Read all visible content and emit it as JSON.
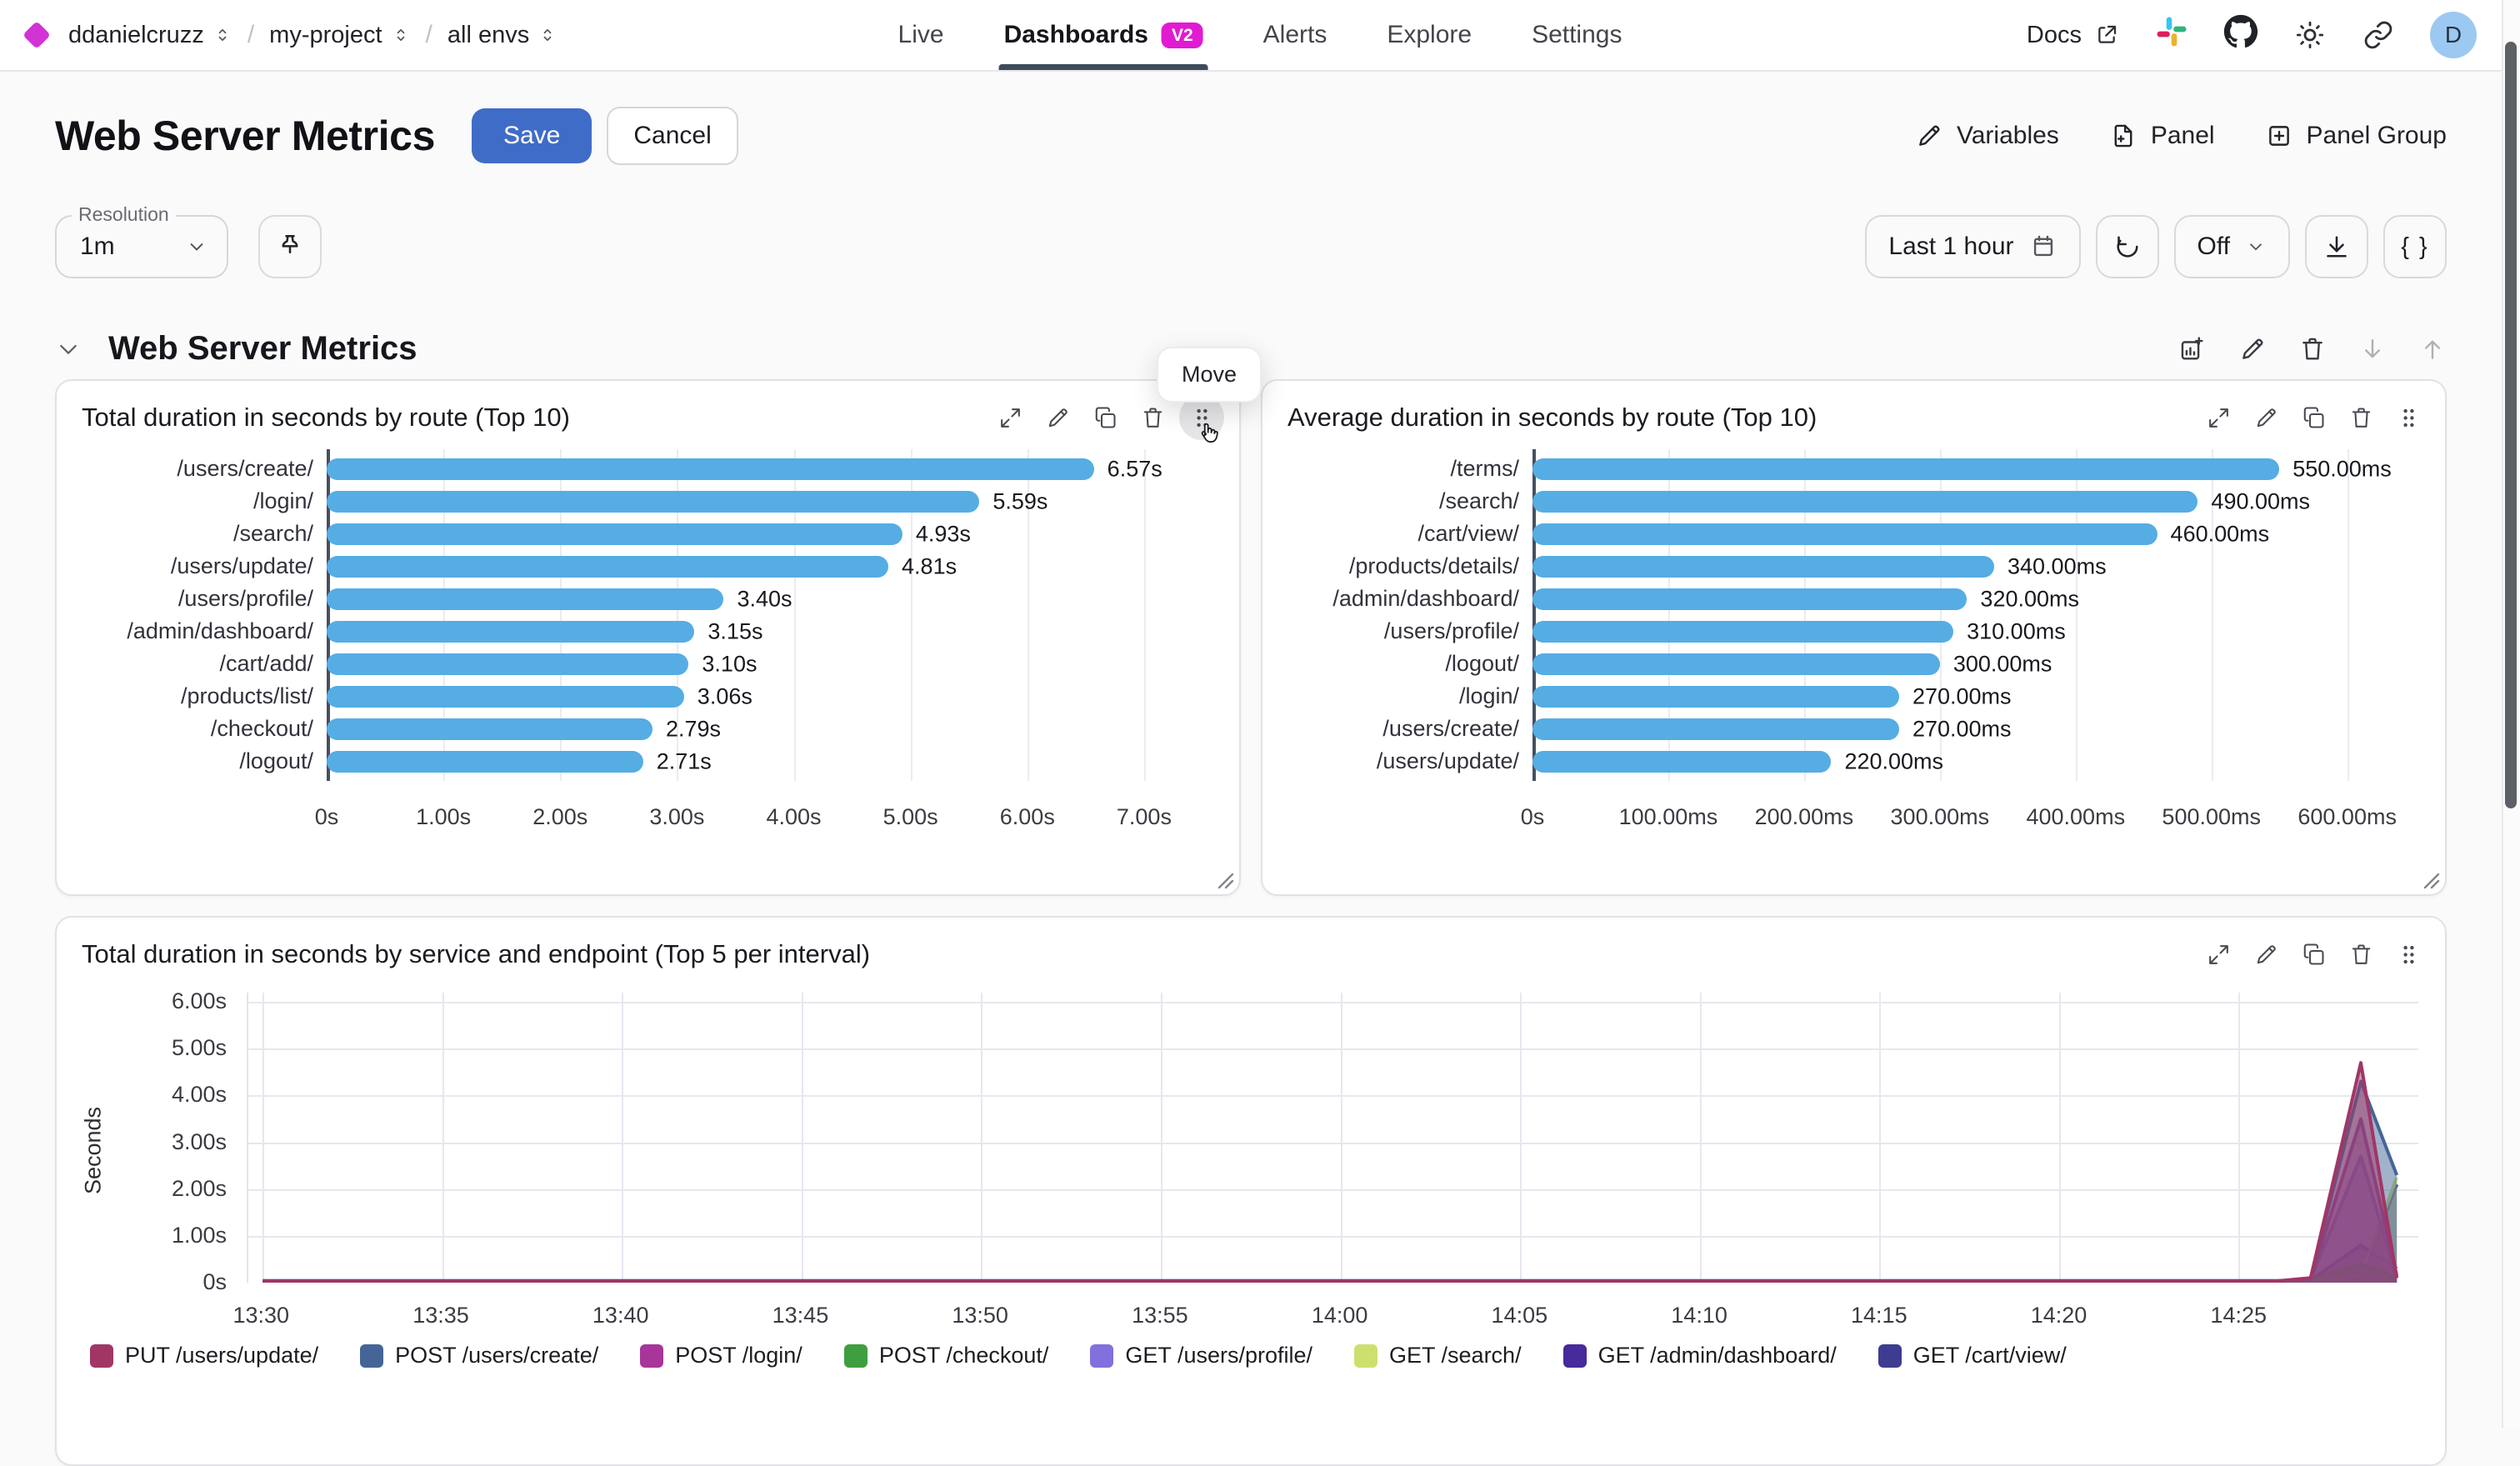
{
  "nav": {
    "separator": "/",
    "breadcrumb": [
      {
        "label": "ddanielcruzz"
      },
      {
        "label": "my-project"
      },
      {
        "label": "all envs"
      }
    ],
    "tabs": [
      {
        "label": "Live",
        "active": false
      },
      {
        "label": "Dashboards",
        "active": true,
        "badge": "V2"
      },
      {
        "label": "Alerts",
        "active": false
      },
      {
        "label": "Explore",
        "active": false
      },
      {
        "label": "Settings",
        "active": false
      }
    ],
    "docs_label": "Docs",
    "icon_names": [
      "external-link-icon",
      "slack-icon",
      "github-icon",
      "sun-icon",
      "link-icon"
    ],
    "avatar_initial": "D"
  },
  "header": {
    "title": "Web Server Metrics",
    "save_label": "Save",
    "cancel_label": "Cancel",
    "actions": [
      {
        "label": "Variables",
        "icon": "pencil-icon"
      },
      {
        "label": "Panel",
        "icon": "file-plus-icon"
      },
      {
        "label": "Panel Group",
        "icon": "square-plus-icon"
      }
    ]
  },
  "toolbar": {
    "resolution_label": "Resolution",
    "resolution_value": "1m",
    "pin_icon": "pin-icon",
    "time_range": "Last 1 hour",
    "refresh_value": "Off",
    "code_button_label": "{ }",
    "icon_names": [
      "calendar-icon",
      "refresh-icon",
      "chevron-down-icon",
      "download-icon"
    ]
  },
  "section": {
    "title": "Web Server Metrics",
    "move_tooltip": "Move",
    "toolbar_icons": [
      "chart-add-icon",
      "pencil-icon",
      "trash-icon",
      "arrow-down-icon",
      "arrow-up-icon"
    ]
  },
  "panel_toolbar_icons": [
    "expand-icon",
    "pencil-icon",
    "copy-icon",
    "trash-icon",
    "drag-handle-icon"
  ],
  "colors": {
    "save_button": "#3f6cc7",
    "badge": "#e01bd2",
    "active_tab_underline": "#3e4b5b",
    "bar": "#55ade4",
    "avatar_bg": "#9cc9f2",
    "brand_diamond": "#d133d5"
  },
  "chart_data": [
    {
      "type": "bar",
      "orientation": "horizontal",
      "title": "Total duration in seconds by route (Top 10)",
      "categories": [
        "/users/create/",
        "/login/",
        "/search/",
        "/users/update/",
        "/users/profile/",
        "/admin/dashboard/",
        "/cart/add/",
        "/products/list/",
        "/checkout/",
        "/logout/"
      ],
      "values": [
        6.57,
        5.59,
        4.93,
        4.81,
        3.4,
        3.15,
        3.1,
        3.06,
        2.79,
        2.71
      ],
      "value_labels": [
        "6.57s",
        "5.59s",
        "4.93s",
        "4.81s",
        "3.40s",
        "3.15s",
        "3.10s",
        "3.06s",
        "2.79s",
        "2.71s"
      ],
      "unit": "s",
      "xticks": [
        0,
        1,
        2,
        3,
        4,
        5,
        6,
        7
      ],
      "xtick_labels": [
        "0s",
        "1.00s",
        "2.00s",
        "3.00s",
        "4.00s",
        "5.00s",
        "6.00s",
        "7.00s"
      ],
      "xmax": 7.5,
      "bar_color": "#55ade4"
    },
    {
      "type": "bar",
      "orientation": "horizontal",
      "title": "Average duration in seconds by route (Top 10)",
      "categories": [
        "/terms/",
        "/search/",
        "/cart/view/",
        "/products/details/",
        "/admin/dashboard/",
        "/users/profile/",
        "/logout/",
        "/login/",
        "/users/create/",
        "/users/update/"
      ],
      "values": [
        550,
        490,
        460,
        340,
        320,
        310,
        300,
        270,
        270,
        220
      ],
      "value_labels": [
        "550.00ms",
        "490.00ms",
        "460.00ms",
        "340.00ms",
        "320.00ms",
        "310.00ms",
        "300.00ms",
        "270.00ms",
        "270.00ms",
        "220.00ms"
      ],
      "unit": "ms",
      "xticks": [
        0,
        100,
        200,
        300,
        400,
        500,
        600
      ],
      "xtick_labels": [
        "0s",
        "100.00ms",
        "200.00ms",
        "300.00ms",
        "400.00ms",
        "500.00ms",
        "600.00ms"
      ],
      "xmax": 645,
      "bar_color": "#55ade4"
    },
    {
      "type": "area",
      "title": "Total duration in seconds by service and endpoint (Top 5 per interval)",
      "ylabel": "Seconds",
      "yticks": [
        0,
        1,
        2,
        3,
        4,
        5,
        6
      ],
      "ytick_labels": [
        "0s",
        "1.00s",
        "2.00s",
        "3.00s",
        "4.00s",
        "5.00s",
        "6.00s"
      ],
      "ymax": 6.2,
      "x_domain_minutes": [
        -0.4,
        60
      ],
      "xtick_minutes": [
        0,
        5,
        10,
        15,
        20,
        25,
        30,
        35,
        40,
        45,
        50,
        55
      ],
      "xtick_labels": [
        "13:30",
        "13:35",
        "13:40",
        "13:45",
        "13:50",
        "13:55",
        "14:00",
        "14:05",
        "14:10",
        "14:15",
        "14:20",
        "14:25"
      ],
      "sample_minutes": [
        0,
        56,
        57,
        58.4,
        59.4
      ],
      "series": [
        {
          "name": "PUT /users/update/",
          "color": "#a13665",
          "values": [
            0.03,
            0.03,
            0.1,
            4.7,
            0.1
          ]
        },
        {
          "name": "POST /users/create/",
          "color": "#456598",
          "values": [
            0.03,
            0.03,
            0.1,
            4.3,
            2.3
          ]
        },
        {
          "name": "POST /login/",
          "color": "#a8359a",
          "values": [
            0.03,
            0.03,
            0.08,
            3.5,
            0.15
          ]
        },
        {
          "name": "POST /checkout/",
          "color": "#3f9e3f",
          "values": [
            0.02,
            0.02,
            0.05,
            0.4,
            0.1
          ]
        },
        {
          "name": "GET /users/profile/",
          "color": "#8170dd",
          "values": [
            0.03,
            0.03,
            0.06,
            2.7,
            0.1
          ]
        },
        {
          "name": "GET /search/",
          "color": "#cde06e",
          "values": [
            0.02,
            0.02,
            0.03,
            0.15,
            2.25
          ]
        },
        {
          "name": "GET /admin/dashboard/",
          "color": "#472a9b",
          "values": [
            0.02,
            0.02,
            0.03,
            0.1,
            2.1
          ]
        },
        {
          "name": "GET /cart/view/",
          "color": "#3d3c90",
          "values": [
            0.04,
            0.04,
            0.05,
            0.8,
            0.3
          ]
        }
      ],
      "legend_position": "bottom"
    }
  ]
}
